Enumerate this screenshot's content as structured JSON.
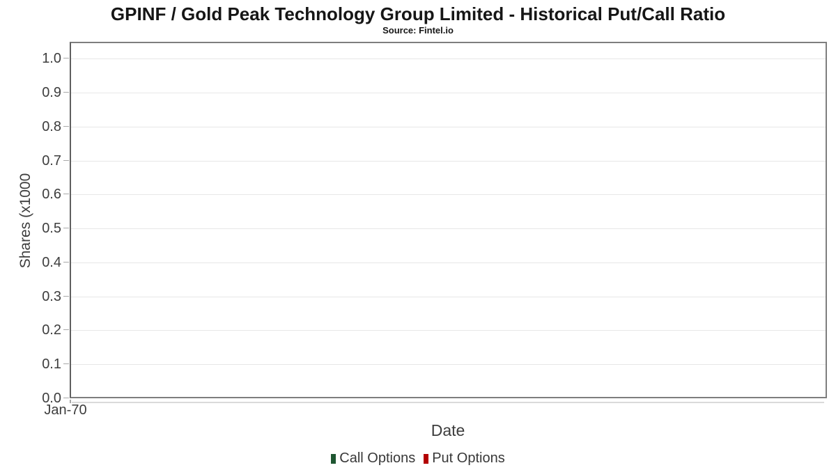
{
  "chart_data": {
    "type": "line",
    "title": "GPINF / Gold Peak Technology Group Limited - Historical Put/Call Ratio",
    "subtitle": "Source: Fintel.io",
    "xlabel": "Date",
    "ylabel": "Shares (x1000",
    "x_ticks": [
      "Jan-70"
    ],
    "y_ticks": [
      "1.0",
      "0.9",
      "0.8",
      "0.7",
      "0.6",
      "0.5",
      "0.4",
      "0.3",
      "0.2",
      "0.1",
      "0.0"
    ],
    "ylim": [
      0,
      1.05
    ],
    "grid": true,
    "legend_position": "bottom",
    "series": [
      {
        "name": "Call Options",
        "color": "#1e5631",
        "values": []
      },
      {
        "name": "Put Options",
        "color": "#b30000",
        "values": []
      }
    ],
    "colors": {
      "grid": "#e7e7e7",
      "plot_border": "#7e7e7e",
      "tick": "#a8a8a8",
      "text": "#3d3d3d"
    }
  }
}
